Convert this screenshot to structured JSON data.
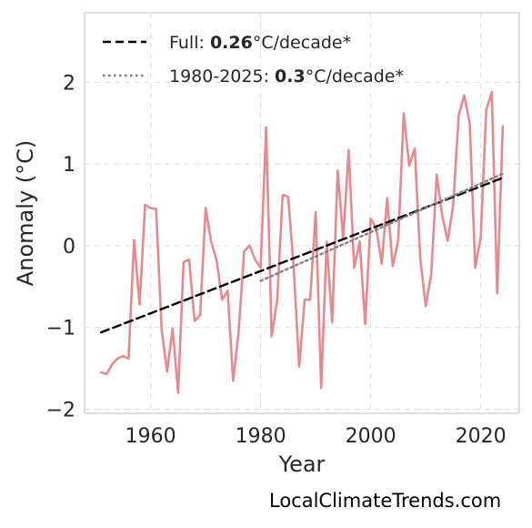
{
  "chart_data": {
    "type": "line",
    "title": "",
    "xlabel": "Year",
    "ylabel": "Anomaly (°C)",
    "xlim": [
      1948,
      2027
    ],
    "ylim": [
      -2.05,
      2.85
    ],
    "xticks": [
      1960,
      1980,
      2000,
      2020
    ],
    "yticks": [
      2,
      1,
      0,
      -1,
      -2
    ],
    "ytick_labels": [
      "2",
      "1",
      "0",
      "−1",
      "−2"
    ],
    "grid": true,
    "legend_position": "top-left",
    "series": [
      {
        "style": "solid",
        "color": "#e8888a",
        "x": [
          1951,
          1952,
          1953,
          1954,
          1955,
          1956,
          1957,
          1958,
          1959,
          1960,
          1961,
          1962,
          1963,
          1964,
          1965,
          1966,
          1967,
          1968,
          1969,
          1970,
          1971,
          1972,
          1973,
          1974,
          1975,
          1976,
          1977,
          1978,
          1979,
          1980,
          1981,
          1982,
          1983,
          1984,
          1985,
          1986,
          1987,
          1988,
          1989,
          1990,
          1991,
          1992,
          1993,
          1994,
          1995,
          1996,
          1997,
          1998,
          1999,
          2000,
          2001,
          2002,
          2003,
          2004,
          2005,
          2006,
          2007,
          2008,
          2009,
          2010,
          2011,
          2012,
          2013,
          2014,
          2015,
          2016,
          2017,
          2018,
          2019,
          2020,
          2021,
          2022,
          2023,
          2024
        ],
        "y": [
          -1.55,
          -1.57,
          -1.45,
          -1.38,
          -1.35,
          -1.38,
          0.07,
          -0.72,
          0.5,
          0.46,
          0.45,
          -1.02,
          -1.54,
          -1.01,
          -1.8,
          -0.2,
          -0.17,
          -0.92,
          -0.85,
          0.46,
          0.05,
          -0.18,
          -0.66,
          -0.55,
          -1.65,
          -1.05,
          -0.07,
          0.0,
          -0.17,
          -0.27,
          1.45,
          -1.11,
          -0.67,
          0.62,
          0.6,
          -0.26,
          -1.48,
          -0.66,
          -0.66,
          0.41,
          -1.74,
          0.05,
          -0.94,
          0.92,
          0.09,
          1.17,
          -0.27,
          0.05,
          -0.96,
          0.33,
          0.22,
          -0.22,
          0.58,
          -0.25,
          0.06,
          1.62,
          0.98,
          1.19,
          -0.15,
          -0.74,
          -0.35,
          0.87,
          0.37,
          0.06,
          0.5,
          1.6,
          1.84,
          1.5,
          -0.27,
          0.11,
          1.66,
          1.88,
          -0.58,
          1.46
        ]
      },
      {
        "name": "Full: 0.26°C/decade*",
        "style": "dashed",
        "color": "#000000",
        "x": [
          1951,
          2024
        ],
        "y": [
          -1.06,
          0.83
        ]
      },
      {
        "name": "1980-2025: 0.3°C/decade*",
        "style": "dotted",
        "color": "#808080",
        "x": [
          1980,
          2024
        ],
        "y": [
          -0.43,
          0.88
        ]
      }
    ],
    "legend": [
      {
        "prefix": "Full: ",
        "bold": "0.26",
        "suffix": "°C/decade*"
      },
      {
        "prefix": "1980-2025: ",
        "bold": "0.3",
        "suffix": "°C/decade*"
      }
    ]
  },
  "credit": "LocalClimateTrends.com"
}
